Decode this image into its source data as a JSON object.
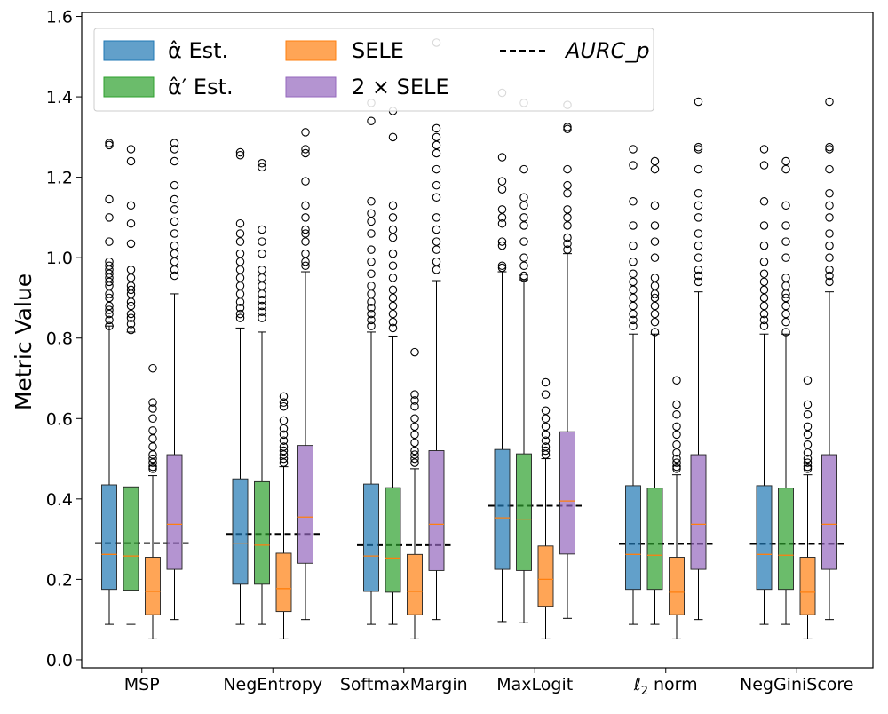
{
  "chart_data": {
    "type": "box",
    "ylabel": "Metric Value",
    "xlabel": "",
    "ylim": [
      -0.02,
      1.61
    ],
    "yticks": [
      0.0,
      0.2,
      0.4,
      0.6,
      0.8,
      1.0,
      1.2,
      1.4,
      1.6
    ],
    "ytick_labels": [
      "0.0",
      "0.2",
      "0.4",
      "0.6",
      "0.8",
      "1.0",
      "1.2",
      "1.4",
      "1.6"
    ],
    "categories": [
      "MSP",
      "NegEntropy",
      "SoftmaxMargin",
      "MaxLogit",
      "ℓ2 norm",
      "NegGiniScore"
    ],
    "series": [
      {
        "name": "α̂ Est.",
        "color": "#1f77b4"
      },
      {
        "name": "α̂′ Est.",
        "color": "#2ca02c"
      },
      {
        "name": "SELE",
        "color": "#ff7f0e"
      },
      {
        "name": "2 × SELE",
        "color": "#9467bd"
      }
    ],
    "reference_line": {
      "name": "AURC_p",
      "values": [
        0.29,
        0.313,
        0.285,
        0.383,
        0.288,
        0.288
      ]
    },
    "legend": {
      "position": "top-left",
      "labels": [
        "α̂ Est.",
        "α̂′ Est.",
        "SELE",
        "2 × SELE",
        "AURC_p"
      ]
    },
    "boxes": [
      [
        {
          "q1": 0.175,
          "median": 0.262,
          "q3": 0.435,
          "wlo": 0.088,
          "whi": 0.83,
          "fliers": [
            0.83,
            0.845,
            0.86,
            0.87,
            0.88,
            0.9,
            0.91,
            0.93,
            0.94,
            0.95,
            0.96,
            0.97,
            0.98,
            0.99,
            1.04,
            1.1,
            1.145,
            1.28,
            1.285
          ]
        },
        {
          "q1": 0.173,
          "median": 0.258,
          "q3": 0.43,
          "wlo": 0.088,
          "whi": 0.815,
          "fliers": [
            0.82,
            0.835,
            0.85,
            0.86,
            0.88,
            0.89,
            0.91,
            0.92,
            0.93,
            0.95,
            0.97,
            1.035,
            1.085,
            1.13,
            1.24,
            1.27
          ]
        },
        {
          "q1": 0.112,
          "median": 0.17,
          "q3": 0.255,
          "wlo": 0.052,
          "whi": 0.458,
          "fliers": [
            0.475,
            0.48,
            0.49,
            0.5,
            0.51,
            0.53,
            0.55,
            0.57,
            0.6,
            0.625,
            0.64,
            0.725
          ]
        },
        {
          "q1": 0.225,
          "median": 0.337,
          "q3": 0.51,
          "wlo": 0.1,
          "whi": 0.91,
          "fliers": [
            0.955,
            0.97,
            0.99,
            1.01,
            1.03,
            1.06,
            1.09,
            1.12,
            1.145,
            1.18,
            1.24,
            1.27,
            1.285
          ]
        }
      ],
      [
        {
          "q1": 0.188,
          "median": 0.29,
          "q3": 0.45,
          "wlo": 0.088,
          "whi": 0.825,
          "fliers": [
            0.85,
            0.86,
            0.875,
            0.89,
            0.91,
            0.93,
            0.95,
            0.97,
            0.99,
            1.01,
            1.04,
            1.06,
            1.085,
            1.255,
            1.262
          ]
        },
        {
          "q1": 0.188,
          "median": 0.285,
          "q3": 0.443,
          "wlo": 0.088,
          "whi": 0.815,
          "fliers": [
            0.85,
            0.865,
            0.88,
            0.895,
            0.91,
            0.93,
            0.95,
            0.97,
            1.01,
            1.04,
            1.07,
            1.225,
            1.235
          ]
        },
        {
          "q1": 0.12,
          "median": 0.177,
          "q3": 0.265,
          "wlo": 0.052,
          "whi": 0.48,
          "fliers": [
            0.49,
            0.5,
            0.51,
            0.52,
            0.53,
            0.545,
            0.56,
            0.575,
            0.595,
            0.63,
            0.64,
            0.655
          ]
        },
        {
          "q1": 0.24,
          "median": 0.355,
          "q3": 0.533,
          "wlo": 0.1,
          "whi": 0.965,
          "fliers": [
            0.98,
            0.99,
            1.01,
            1.04,
            1.06,
            1.07,
            1.1,
            1.13,
            1.19,
            1.26,
            1.27,
            1.312
          ]
        }
      ],
      [
        {
          "q1": 0.17,
          "median": 0.258,
          "q3": 0.437,
          "wlo": 0.088,
          "whi": 0.815,
          "fliers": [
            0.83,
            0.845,
            0.86,
            0.875,
            0.89,
            0.91,
            0.93,
            0.96,
            0.99,
            1.02,
            1.06,
            1.09,
            1.11,
            1.14,
            1.34,
            1.385
          ]
        },
        {
          "q1": 0.168,
          "median": 0.253,
          "q3": 0.428,
          "wlo": 0.088,
          "whi": 0.805,
          "fliers": [
            0.825,
            0.84,
            0.86,
            0.88,
            0.9,
            0.92,
            0.95,
            0.98,
            1.01,
            1.05,
            1.07,
            1.1,
            1.13,
            1.3,
            1.365
          ]
        },
        {
          "q1": 0.112,
          "median": 0.17,
          "q3": 0.262,
          "wlo": 0.052,
          "whi": 0.475,
          "fliers": [
            0.49,
            0.5,
            0.51,
            0.52,
            0.54,
            0.56,
            0.58,
            0.6,
            0.63,
            0.645,
            0.66,
            0.765
          ]
        },
        {
          "q1": 0.222,
          "median": 0.337,
          "q3": 0.52,
          "wlo": 0.1,
          "whi": 0.943,
          "fliers": [
            0.97,
            0.99,
            1.02,
            1.04,
            1.07,
            1.1,
            1.15,
            1.18,
            1.22,
            1.26,
            1.28,
            1.3,
            1.322,
            1.535
          ]
        }
      ],
      [
        {
          "q1": 0.225,
          "median": 0.353,
          "q3": 0.523,
          "wlo": 0.095,
          "whi": 0.965,
          "fliers": [
            0.975,
            0.98,
            1.03,
            1.04,
            1.085,
            1.1,
            1.12,
            1.17,
            1.19,
            1.25,
            1.41
          ]
        },
        {
          "q1": 0.222,
          "median": 0.348,
          "q3": 0.512,
          "wlo": 0.092,
          "whi": 0.945,
          "fliers": [
            0.95,
            0.955,
            0.98,
            1.0,
            1.04,
            1.08,
            1.1,
            1.13,
            1.15,
            1.22,
            1.385
          ]
        },
        {
          "q1": 0.133,
          "median": 0.2,
          "q3": 0.283,
          "wlo": 0.052,
          "whi": 0.5,
          "fliers": [
            0.51,
            0.52,
            0.53,
            0.545,
            0.56,
            0.58,
            0.6,
            0.62,
            0.66,
            0.69
          ]
        },
        {
          "q1": 0.263,
          "median": 0.395,
          "q3": 0.567,
          "wlo": 0.103,
          "whi": 1.01,
          "fliers": [
            1.02,
            1.035,
            1.05,
            1.08,
            1.1,
            1.12,
            1.16,
            1.18,
            1.22,
            1.32,
            1.325,
            1.38
          ]
        }
      ],
      [
        {
          "q1": 0.175,
          "median": 0.262,
          "q3": 0.433,
          "wlo": 0.088,
          "whi": 0.81,
          "fliers": [
            0.83,
            0.845,
            0.86,
            0.88,
            0.9,
            0.92,
            0.94,
            0.96,
            0.99,
            1.03,
            1.08,
            1.14,
            1.23,
            1.27
          ]
        },
        {
          "q1": 0.175,
          "median": 0.26,
          "q3": 0.427,
          "wlo": 0.088,
          "whi": 0.81,
          "fliers": [
            0.815,
            0.84,
            0.86,
            0.88,
            0.9,
            0.91,
            0.93,
            0.95,
            1.0,
            1.04,
            1.08,
            1.13,
            1.22,
            1.24
          ]
        },
        {
          "q1": 0.112,
          "median": 0.168,
          "q3": 0.255,
          "wlo": 0.052,
          "whi": 0.46,
          "fliers": [
            0.475,
            0.48,
            0.49,
            0.5,
            0.515,
            0.535,
            0.56,
            0.58,
            0.61,
            0.635,
            0.695
          ]
        },
        {
          "q1": 0.225,
          "median": 0.337,
          "q3": 0.51,
          "wlo": 0.1,
          "whi": 0.915,
          "fliers": [
            0.94,
            0.955,
            0.97,
            1.0,
            1.03,
            1.06,
            1.1,
            1.13,
            1.16,
            1.22,
            1.27,
            1.275,
            1.388
          ]
        }
      ],
      [
        {
          "q1": 0.175,
          "median": 0.262,
          "q3": 0.433,
          "wlo": 0.088,
          "whi": 0.81,
          "fliers": [
            0.83,
            0.845,
            0.86,
            0.88,
            0.9,
            0.92,
            0.94,
            0.96,
            0.99,
            1.03,
            1.08,
            1.14,
            1.23,
            1.27
          ]
        },
        {
          "q1": 0.175,
          "median": 0.26,
          "q3": 0.427,
          "wlo": 0.088,
          "whi": 0.81,
          "fliers": [
            0.815,
            0.84,
            0.86,
            0.88,
            0.9,
            0.91,
            0.93,
            0.95,
            1.0,
            1.04,
            1.08,
            1.13,
            1.22,
            1.24
          ]
        },
        {
          "q1": 0.112,
          "median": 0.168,
          "q3": 0.255,
          "wlo": 0.052,
          "whi": 0.46,
          "fliers": [
            0.475,
            0.48,
            0.49,
            0.5,
            0.515,
            0.535,
            0.56,
            0.58,
            0.61,
            0.635,
            0.695
          ]
        },
        {
          "q1": 0.225,
          "median": 0.337,
          "q3": 0.51,
          "wlo": 0.1,
          "whi": 0.915,
          "fliers": [
            0.94,
            0.955,
            0.97,
            1.0,
            1.03,
            1.06,
            1.1,
            1.13,
            1.16,
            1.22,
            1.27,
            1.275,
            1.388
          ]
        }
      ]
    ]
  }
}
